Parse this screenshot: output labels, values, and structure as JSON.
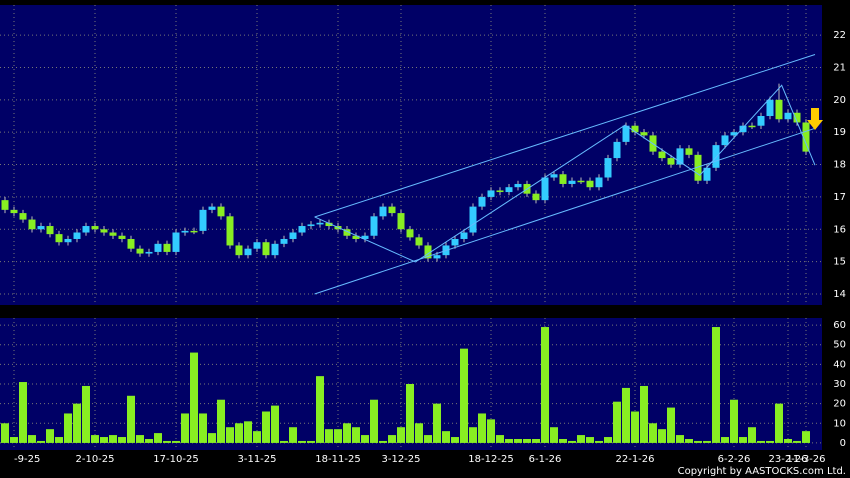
{
  "chart_data": {
    "type": "candlestick",
    "categories": [
      null,
      "-9-25",
      null,
      null,
      null,
      null,
      null,
      null,
      null,
      null,
      "2-10-25",
      null,
      null,
      null,
      null,
      null,
      null,
      null,
      null,
      "17-10-25",
      null,
      null,
      null,
      null,
      null,
      null,
      null,
      null,
      "3-11-25",
      null,
      null,
      null,
      null,
      null,
      null,
      null,
      null,
      "18-11-25",
      null,
      null,
      null,
      null,
      null,
      null,
      "3-12-25",
      null,
      null,
      null,
      null,
      null,
      null,
      null,
      null,
      null,
      "18-12-25",
      null,
      null,
      null,
      null,
      null,
      "6-1-26",
      null,
      null,
      null,
      null,
      null,
      null,
      null,
      null,
      null,
      "22-1-26",
      null,
      null,
      null,
      null,
      null,
      null,
      null,
      null,
      null,
      null,
      "6-2-26",
      null,
      null,
      null,
      null,
      null,
      "23-2-26",
      null,
      "11-3-26"
    ],
    "open": [
      16.9,
      16.6,
      16.5,
      16.3,
      16.0,
      16.1,
      15.85,
      15.6,
      15.7,
      15.9,
      16.1,
      16.0,
      15.9,
      15.8,
      15.7,
      15.4,
      15.25,
      15.3,
      15.55,
      15.3,
      15.9,
      15.95,
      15.95,
      16.6,
      16.7,
      16.4,
      15.5,
      15.2,
      15.4,
      15.6,
      15.2,
      15.55,
      15.7,
      15.9,
      16.1,
      16.15,
      16.2,
      16.1,
      16.0,
      15.8,
      15.7,
      15.8,
      16.4,
      16.7,
      16.5,
      16.0,
      15.75,
      15.5,
      15.1,
      15.2,
      15.5,
      15.7,
      15.9,
      16.7,
      17.0,
      17.2,
      17.15,
      17.3,
      17.4,
      17.1,
      16.9,
      17.6,
      17.7,
      17.4,
      17.5,
      17.5,
      17.3,
      17.6,
      18.2,
      18.7,
      19.2,
      19.0,
      18.9,
      18.4,
      18.2,
      18.0,
      18.5,
      18.3,
      17.5,
      17.9,
      18.6,
      18.9,
      19.0,
      19.2,
      19.2,
      19.5,
      20.0,
      19.4,
      19.6,
      19.3
    ],
    "high": [
      17.0,
      16.7,
      16.6,
      16.4,
      16.2,
      16.2,
      15.95,
      15.8,
      16.0,
      16.2,
      16.2,
      16.1,
      16.0,
      15.9,
      15.8,
      15.5,
      15.4,
      15.65,
      15.65,
      16.0,
      16.05,
      16.05,
      16.7,
      16.8,
      16.8,
      16.5,
      15.6,
      15.5,
      15.7,
      15.7,
      15.65,
      15.8,
      16.0,
      16.2,
      16.25,
      16.3,
      16.3,
      16.2,
      16.1,
      15.9,
      15.9,
      16.5,
      16.8,
      16.8,
      16.6,
      16.1,
      15.85,
      15.6,
      15.3,
      15.6,
      15.8,
      16.0,
      16.8,
      17.1,
      17.3,
      17.3,
      17.4,
      17.5,
      17.5,
      17.2,
      17.7,
      17.8,
      17.8,
      17.6,
      17.6,
      17.6,
      17.7,
      18.3,
      18.8,
      19.3,
      19.3,
      19.1,
      19.0,
      18.5,
      18.3,
      18.6,
      18.6,
      18.4,
      18.0,
      18.7,
      19.0,
      19.1,
      19.3,
      19.3,
      19.6,
      20.1,
      20.5,
      19.7,
      19.7,
      19.4
    ],
    "low": [
      16.5,
      16.4,
      16.2,
      15.9,
      15.9,
      15.75,
      15.5,
      15.5,
      15.6,
      15.8,
      15.9,
      15.8,
      15.7,
      15.6,
      15.3,
      15.15,
      15.15,
      15.2,
      15.2,
      15.2,
      15.8,
      15.85,
      15.85,
      16.5,
      16.3,
      15.4,
      15.1,
      15.1,
      15.3,
      15.1,
      15.1,
      15.45,
      15.6,
      15.8,
      16.0,
      16.05,
      16.0,
      15.9,
      15.7,
      15.6,
      15.6,
      15.7,
      16.3,
      16.4,
      15.9,
      15.65,
      15.4,
      15.0,
      15.0,
      15.1,
      15.4,
      15.6,
      15.8,
      16.6,
      16.9,
      17.05,
      17.05,
      17.2,
      17.0,
      16.8,
      16.8,
      17.5,
      17.3,
      17.3,
      17.4,
      17.2,
      17.2,
      17.5,
      18.1,
      18.6,
      18.9,
      18.8,
      18.3,
      18.1,
      17.9,
      17.9,
      18.2,
      17.4,
      17.4,
      17.8,
      18.5,
      18.8,
      18.9,
      19.1,
      19.1,
      19.4,
      19.3,
      19.3,
      19.2,
      18.3
    ],
    "close": [
      16.6,
      16.5,
      16.3,
      16.0,
      16.1,
      15.85,
      15.6,
      15.7,
      15.9,
      16.1,
      16.0,
      15.9,
      15.8,
      15.7,
      15.4,
      15.25,
      15.3,
      15.55,
      15.3,
      15.9,
      15.95,
      15.95,
      16.6,
      16.7,
      16.4,
      15.5,
      15.2,
      15.4,
      15.6,
      15.2,
      15.55,
      15.7,
      15.9,
      16.1,
      16.15,
      16.2,
      16.1,
      16.0,
      15.8,
      15.7,
      15.8,
      16.4,
      16.7,
      16.5,
      16.0,
      15.75,
      15.5,
      15.1,
      15.2,
      15.5,
      15.7,
      15.9,
      16.7,
      17.0,
      17.2,
      17.15,
      17.3,
      17.4,
      17.1,
      16.9,
      17.6,
      17.7,
      17.4,
      17.5,
      17.5,
      17.3,
      17.6,
      18.2,
      18.7,
      19.2,
      19.0,
      18.9,
      18.4,
      18.2,
      18.0,
      18.5,
      18.3,
      17.5,
      17.9,
      18.6,
      18.9,
      19.0,
      19.2,
      19.2,
      19.5,
      20.0,
      19.4,
      19.6,
      19.3,
      18.4
    ],
    "up_color": "#33ccff",
    "down_color": "#88ee22",
    "ylim": [
      13.66,
      22.93
    ],
    "yticks": [
      14,
      15,
      16,
      17,
      18,
      19,
      20,
      21,
      22
    ],
    "grid": true,
    "trend_lines": [
      {
        "x": [
          34.4,
          90
        ],
        "y": [
          16.38,
          21.4
        ]
      },
      {
        "x": [
          34.4,
          90
        ],
        "y": [
          14.0,
          19.12
        ]
      },
      {
        "x": [
          34.4,
          45.6,
          68.9,
          77.2,
          86.3,
          90
        ],
        "y": [
          16.38,
          14.99,
          19.22,
          17.67,
          20.45,
          17.98
        ]
      }
    ],
    "trend_color": "#66bbff",
    "volume": {
      "values": [
        10,
        3,
        31,
        4,
        1,
        7,
        3,
        15,
        20,
        29,
        4,
        3,
        4,
        3,
        24,
        4,
        2,
        5,
        1,
        1,
        15,
        46,
        15,
        5,
        22,
        8,
        10,
        11,
        6,
        16,
        19,
        1,
        8,
        1,
        1,
        34,
        7,
        7,
        10,
        8,
        4,
        22,
        1,
        4,
        8,
        30,
        10,
        4,
        20,
        6,
        3,
        48,
        8,
        15,
        12,
        4,
        2,
        2,
        2,
        2,
        59,
        8,
        2,
        1,
        4,
        3,
        1,
        3,
        21,
        28,
        16,
        29,
        10,
        7,
        18,
        4,
        2,
        1,
        1,
        59,
        3,
        22,
        3,
        8,
        1,
        1,
        20,
        2,
        1,
        6
      ],
      "color": "#88ee22",
      "ylim": [
        -3.6,
        63.6
      ],
      "yticks": [
        0,
        10,
        20,
        30,
        40,
        50,
        60
      ]
    }
  },
  "copyright": "Copyright by AASTOCKS.com Ltd."
}
